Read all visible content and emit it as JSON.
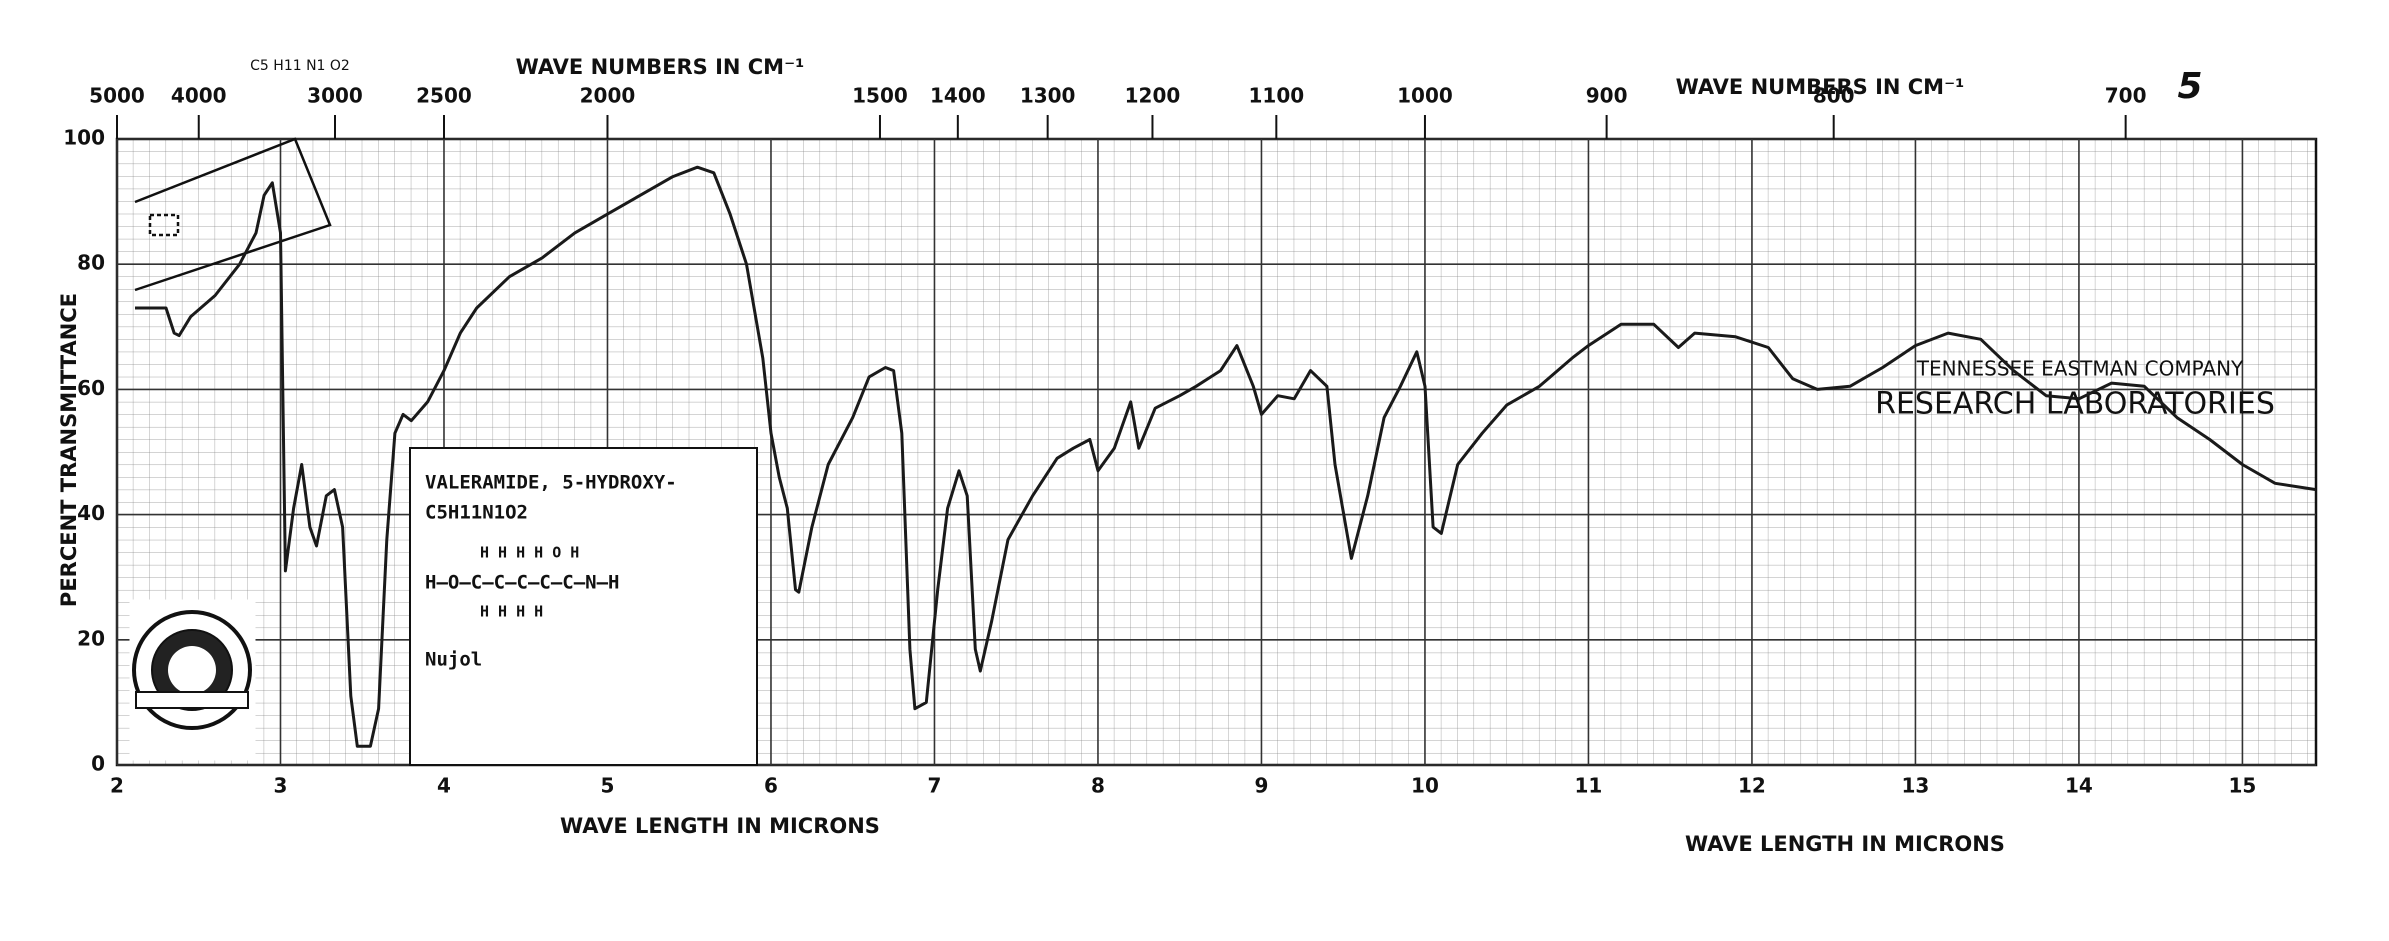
{
  "chart_data": {
    "type": "line",
    "x_label": "WAVE LENGTH IN MICRONS",
    "y_label": "PERCENT TRANSMITTANCE",
    "x2_label": "WAVE NUMBERS IN CM⁻¹",
    "xlim": [
      2,
      15.45
    ],
    "ylim": [
      0,
      100
    ],
    "xticks": [
      2,
      3,
      4,
      5,
      6,
      7,
      8,
      9,
      10,
      11,
      12,
      13,
      14,
      15
    ],
    "yticks": [
      0,
      20,
      40,
      60,
      80,
      100
    ],
    "x2ticks": [
      5000,
      4000,
      3000,
      2500,
      2000,
      1500,
      1400,
      1300,
      1200,
      1100,
      1000,
      900,
      800,
      700
    ],
    "grid": true,
    "color": "#1a1a1a",
    "x": [
      2.11,
      2.2,
      2.3,
      2.35,
      2.38,
      2.45,
      2.6,
      2.75,
      2.85,
      2.9,
      2.95,
      3.0,
      3.03,
      3.08,
      3.13,
      3.18,
      3.22,
      3.28,
      3.33,
      3.38,
      3.43,
      3.47,
      3.55,
      3.6,
      3.65,
      3.7,
      3.75,
      3.8,
      3.9,
      4.0,
      4.1,
      4.2,
      4.4,
      4.6,
      4.8,
      5.0,
      5.2,
      5.4,
      5.55,
      5.65,
      5.75,
      5.85,
      5.95,
      6.0,
      6.05,
      6.1,
      6.15,
      6.17,
      6.25,
      6.35,
      6.5,
      6.6,
      6.7,
      6.75,
      6.8,
      6.85,
      6.88,
      6.95,
      7.02,
      7.08,
      7.15,
      7.2,
      7.25,
      7.28,
      7.35,
      7.45,
      7.6,
      7.75,
      7.85,
      7.95,
      8.0,
      8.1,
      8.2,
      8.25,
      8.35,
      8.5,
      8.6,
      8.75,
      8.85,
      8.95,
      9.0,
      9.1,
      9.2,
      9.3,
      9.4,
      9.45,
      9.55,
      9.65,
      9.75,
      9.85,
      9.95,
      10.0,
      10.05,
      10.1,
      10.2,
      10.35,
      10.5,
      10.7,
      10.9,
      11.0,
      11.2,
      11.4,
      11.55,
      11.65,
      11.9,
      12.1,
      12.25,
      12.4,
      12.6,
      12.8,
      13.0,
      13.2,
      13.4,
      13.6,
      13.8,
      14.0,
      14.2,
      14.4,
      14.6,
      14.8,
      15.0,
      15.2,
      15.45
    ],
    "values": [
      73,
      73,
      73,
      69,
      68.6,
      71.6,
      75,
      80,
      85,
      91,
      93,
      85,
      31,
      41,
      48,
      38,
      35,
      43,
      44,
      38,
      11,
      3,
      3,
      9,
      36,
      53,
      56,
      55,
      58,
      63,
      69,
      73,
      78,
      81,
      85,
      88,
      91,
      94,
      95.5,
      94.6,
      88,
      80,
      65,
      53,
      46,
      41,
      28,
      27.6,
      38,
      48,
      55.5,
      62,
      63.5,
      63,
      53,
      18.5,
      9,
      10,
      28,
      41,
      47,
      43,
      18.5,
      15,
      23,
      36,
      43,
      49,
      50.6,
      52,
      47,
      50.6,
      58,
      50.6,
      57,
      59,
      60.5,
      63,
      67,
      60.5,
      56,
      59,
      58.5,
      63,
      60.5,
      48,
      33,
      43,
      55.5,
      60.5,
      66,
      60.5,
      38,
      37,
      48,
      53,
      57.5,
      60.5,
      65,
      67,
      70.4,
      70.4,
      66.7,
      69,
      68.4,
      66.7,
      61.7,
      60,
      60.5,
      63.5,
      67,
      69,
      68,
      63,
      59,
      58.5,
      61,
      60.5,
      55.5,
      52,
      48,
      45,
      44
    ],
    "annotations": {
      "page_number": "5",
      "formula_top": "C5 H11 N1 O2",
      "compound_name": "VALERAMIDE, 5-HYDROXY-",
      "compound_formula": "C5H11N1O2",
      "structure_top": "H   H   H   H   O   H",
      "structure_mid": "H–O–C–C–C–C–C–N–H",
      "structure_bottom": "H   H   H   H",
      "medium": "Nujol",
      "company": "TENNESSEE EASTMAN COMPANY",
      "lab": "RESEARCH LABORATORIES"
    }
  }
}
